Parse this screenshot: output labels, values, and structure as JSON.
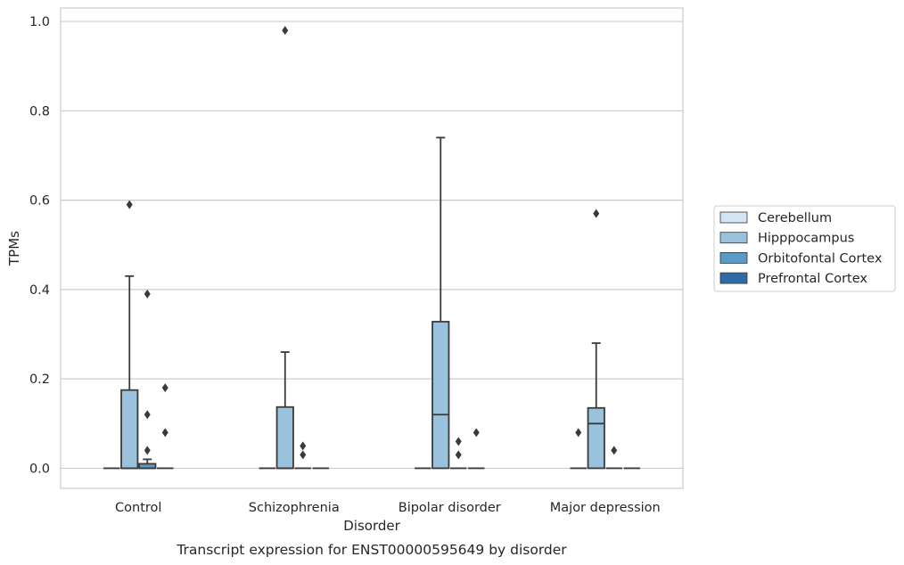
{
  "chart_data": {
    "type": "box",
    "caption": "Transcript expression for ENST00000595649 by disorder",
    "xlabel": "Disorder",
    "ylabel": "TPMs",
    "ylim": [
      -0.045,
      1.03
    ],
    "yticks": [
      "0.0",
      "0.2",
      "0.4",
      "0.6",
      "0.8",
      "1.0"
    ],
    "ytick_values": [
      0.0,
      0.2,
      0.4,
      0.6,
      0.8,
      1.0
    ],
    "grid": true,
    "legend_position": "right",
    "categories": [
      "Control",
      "Schizophrenia",
      "Bipolar disorder",
      "Major depression"
    ],
    "series": [
      {
        "name": "Cerebellum",
        "color": "#d3e4f3",
        "boxes": [
          {
            "q1": 0,
            "median": 0,
            "q3": 0,
            "whislo": 0,
            "whishi": 0,
            "fliers": []
          },
          {
            "q1": 0,
            "median": 0,
            "q3": 0,
            "whislo": 0,
            "whishi": 0,
            "fliers": []
          },
          {
            "q1": 0,
            "median": 0,
            "q3": 0,
            "whislo": 0,
            "whishi": 0,
            "fliers": []
          },
          {
            "q1": 0,
            "median": 0,
            "q3": 0,
            "whislo": 0,
            "whishi": 0,
            "fliers": []
          }
        ]
      },
      {
        "name": "Hipppocampus",
        "color": "#9ac2dc",
        "boxes": [
          {
            "q1": 0,
            "median": 0,
            "q3": 0.175,
            "whislo": 0,
            "whishi": 0.43,
            "fliers": [
              0.59
            ]
          },
          {
            "q1": 0,
            "median": 0,
            "q3": 0.137,
            "whislo": 0,
            "whishi": 0.26,
            "fliers": [
              0.98
            ]
          },
          {
            "q1": 0,
            "median": 0.12,
            "q3": 0.328,
            "whislo": 0,
            "whishi": 0.74,
            "fliers": []
          },
          {
            "q1": 0,
            "median": 0.1,
            "q3": 0.135,
            "whislo": 0,
            "whishi": 0.28,
            "fliers": [
              0.57
            ]
          }
        ]
      },
      {
        "name": "Orbitofontal Cortex",
        "color": "#5a9ac6",
        "boxes": [
          {
            "q1": 0,
            "median": 0,
            "q3": 0.01,
            "whislo": 0,
            "whishi": 0.02,
            "fliers": [
              0.39,
              0.12,
              0.04
            ]
          },
          {
            "q1": 0,
            "median": 0,
            "q3": 0,
            "whislo": 0,
            "whishi": 0,
            "fliers": [
              0.05,
              0.03
            ]
          },
          {
            "q1": 0,
            "median": 0,
            "q3": 0,
            "whislo": 0,
            "whishi": 0,
            "fliers": [
              0.06,
              0.03
            ]
          },
          {
            "q1": 0,
            "median": 0,
            "q3": 0,
            "whislo": 0,
            "whishi": 0,
            "fliers": [
              0.04
            ]
          }
        ]
      },
      {
        "name": "Prefrontal Cortex",
        "color": "#2e6ca7",
        "boxes": [
          {
            "q1": 0,
            "median": 0,
            "q3": 0,
            "whislo": 0,
            "whishi": 0,
            "fliers": [
              0.18,
              0.08
            ]
          },
          {
            "q1": 0,
            "median": 0,
            "q3": 0,
            "whislo": 0,
            "whishi": 0,
            "fliers": []
          },
          {
            "q1": 0,
            "median": 0,
            "q3": 0,
            "whislo": 0,
            "whishi": 0,
            "fliers": [
              0.08
            ]
          },
          {
            "q1": 0,
            "median": 0,
            "q3": 0,
            "whislo": 0,
            "whishi": 0,
            "fliers": []
          }
        ],
        "fliers_left_note": ""
      }
    ],
    "extra_fliers": [
      {
        "category": 3,
        "series": 0,
        "values": [
          0.08
        ]
      }
    ]
  }
}
